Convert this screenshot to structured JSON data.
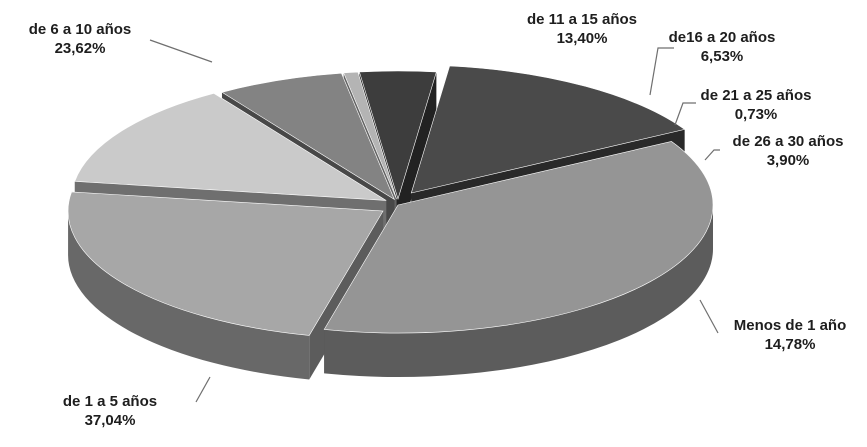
{
  "chart_data": {
    "type": "pie",
    "variant": "3d-exploded",
    "title": "",
    "legend": "none",
    "slices": [
      {
        "label": "Menos de 1 año",
        "value": 14.78,
        "value_label": "14,78%",
        "color": "#4a4a4a"
      },
      {
        "label": "de 1 a 5 años",
        "value": 37.04,
        "value_label": "37,04%",
        "color": "#959595"
      },
      {
        "label": "de 6 a 10 años",
        "value": 23.62,
        "value_label": "23,62%",
        "color": "#a7a7a7"
      },
      {
        "label": "de 11 a 15 años",
        "value": 13.4,
        "value_label": "13,40%",
        "color": "#cacaca"
      },
      {
        "label": "de16 a 20 años",
        "value": 6.53,
        "value_label": "6,53%",
        "color": "#838383"
      },
      {
        "label": "de 21 a 25 años",
        "value": 0.73,
        "value_label": "0,73%",
        "color": "#b4b4b4"
      },
      {
        "label": "de 26 a 30 años",
        "value": 3.9,
        "value_label": "3,90%",
        "color": "#3d3d3d"
      }
    ]
  }
}
